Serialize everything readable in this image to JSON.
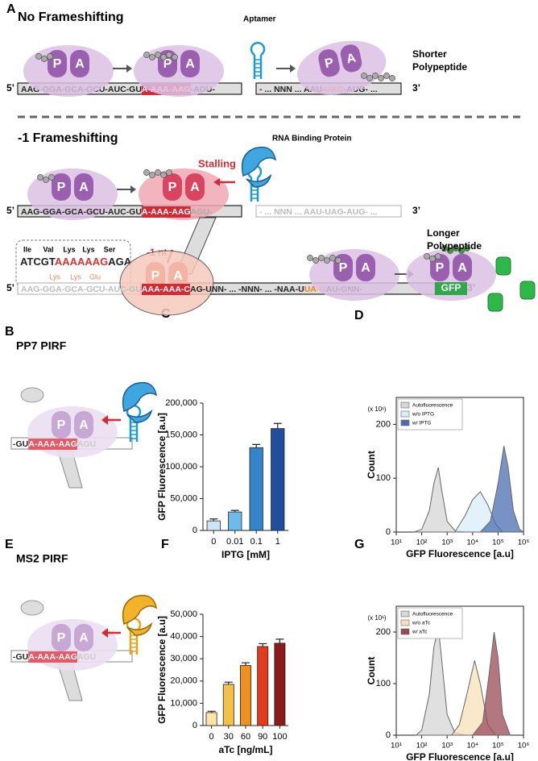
{
  "panel_labels": [
    "A",
    "B",
    "C",
    "D",
    "E",
    "F",
    "G"
  ],
  "diagram": {
    "no_frameshifting": "No Frameshifting",
    "aptamer": "Aptamer",
    "shorter": [
      "Shorter",
      "Polypeptide"
    ],
    "five_prime": "5’",
    "three_prime": "3’",
    "p": "P",
    "a": "A",
    "seq1": [
      "AAG-GGA-GCA-GCU-AUC-GU",
      "A-AAA-AAG",
      "-AGU-"
    ],
    "seq1b": [
      "- ... NNN ... AAU-",
      "UAG",
      "-AUG- ..."
    ],
    "minus1": "-1 Frameshifting",
    "rbp": "RNA Binding Protein",
    "stalling": "Stalling",
    "seq2": [
      "AAG-GGA-GCA-GCU-AUC-GU",
      "A-AAA-AAG",
      "AGU-"
    ],
    "seq2b": "- ... NNN ... AAU-UAG-AUG- ...",
    "minus1nt": "-1 nt",
    "codons_top": [
      "Ile",
      "Val",
      "Lys",
      "Lys",
      "Ser"
    ],
    "codon_seq": [
      "ATCGT",
      "AAAAAAG",
      "AGA"
    ],
    "codons_bottom": [
      "Lys",
      "Lys",
      "Glu"
    ],
    "longer": [
      "Longer",
      "Polypeptide"
    ],
    "seq3": [
      "AAG-GGA-GCA-GCU-AUC-GU",
      "AAA-AAA-C",
      "AG-UNN- ... -NNN- ... -NAA-U",
      "UA-G",
      "AU-GNN-"
    ],
    "gfp": "GFP",
    "pp7": "PP7 PIRF",
    "ms2": "MS2 PIRF",
    "pirf_seq": [
      "-GU",
      "A-AAA-AAG",
      "AGU"
    ]
  },
  "chart_data": [
    {
      "type": "bar",
      "ylabel": "GFP Fluorescence [a.u]",
      "xlabel": "IPTG [mM]",
      "categories": [
        "0",
        "0.01",
        "0.1",
        "1"
      ],
      "values": [
        15000,
        29000,
        130000,
        160000
      ],
      "errors": [
        3000,
        2500,
        5000,
        8000
      ],
      "colors": [
        "#cde6f7",
        "#6cbbea",
        "#3484cc",
        "#1f4e9c"
      ],
      "ylim": [
        0,
        200000
      ],
      "yticks": [
        0,
        {
          "value": 50000,
          "label": "50,000"
        },
        {
          "value": 100000,
          "label": "100,000"
        },
        {
          "value": 150000,
          "label": "150,000"
        },
        {
          "value": 200000,
          "label": "200,000"
        }
      ]
    },
    {
      "type": "area",
      "ylabel": "Count",
      "xlabel": "GFP Fluorescence [a.u]",
      "annotation": "(x 10¹)",
      "xscale": "log",
      "xlim": [
        10,
        1000000
      ],
      "ylim": [
        0,
        250
      ],
      "xticks": [
        {
          "value": 10,
          "label": "10¹"
        },
        {
          "value": 100,
          "label": "10²"
        },
        {
          "value": 1000,
          "label": "10³"
        },
        {
          "value": 10000,
          "label": "10⁴"
        },
        {
          "value": 100000,
          "label": "10⁵"
        },
        {
          "value": 1000000,
          "label": "10⁶"
        }
      ],
      "yticks": [
        0,
        100,
        200
      ],
      "legend": "top-left",
      "series": [
        {
          "name": "Autofluorescence",
          "color": "#d6d6d6",
          "x": [
            50,
            100,
            200,
            300,
            450,
            600,
            1000,
            2000,
            5000
          ],
          "values": [
            0,
            5,
            40,
            90,
            120,
            80,
            20,
            3,
            0
          ]
        },
        {
          "name": "w/o IPTG",
          "color": "#d9edf8",
          "x": [
            2000,
            5000,
            10000,
            20000,
            40000,
            80000,
            150000
          ],
          "values": [
            0,
            30,
            60,
            75,
            50,
            15,
            0
          ]
        },
        {
          "name": "w/ IPTG",
          "color": "#4a6db0",
          "x": [
            20000,
            50000,
            100000,
            170000,
            250000,
            400000,
            700000,
            1000000
          ],
          "values": [
            0,
            20,
            90,
            160,
            120,
            40,
            5,
            0
          ]
        }
      ]
    },
    {
      "type": "bar",
      "ylabel": "GFP Fluorescence [a.u]",
      "xlabel": "aTc [ng/mL]",
      "categories": [
        "0",
        "30",
        "60",
        "90",
        "100"
      ],
      "values": [
        5800,
        18500,
        27000,
        35500,
        37000
      ],
      "errors": [
        600,
        1000,
        1200,
        1300,
        1800
      ],
      "colors": [
        "#fde6a6",
        "#f5c04a",
        "#f0901e",
        "#e43a1e",
        "#8c1a1a"
      ],
      "ylim": [
        0,
        50000
      ],
      "yticks": [
        0,
        {
          "value": 10000,
          "label": "10,000"
        },
        {
          "value": 20000,
          "label": "20,000"
        },
        {
          "value": 30000,
          "label": "30,000"
        },
        {
          "value": 40000,
          "label": "40,000"
        },
        {
          "value": 50000,
          "label": "50,000"
        }
      ]
    },
    {
      "type": "area",
      "ylabel": "Count",
      "xlabel": "GFP Fluorescence [a.u]",
      "annotation": "(x 10¹)",
      "xscale": "log",
      "xlim": [
        10,
        1000000
      ],
      "ylim": [
        0,
        250
      ],
      "xticks": [
        {
          "value": 10,
          "label": "10¹"
        },
        {
          "value": 100,
          "label": "10²"
        },
        {
          "value": 1000,
          "label": "10³"
        },
        {
          "value": 10000,
          "label": "10⁴"
        },
        {
          "value": 100000,
          "label": "10⁵"
        },
        {
          "value": 1000000,
          "label": "10⁶"
        }
      ],
      "yticks": [
        0,
        100,
        200
      ],
      "legend": "top-left",
      "series": [
        {
          "name": "Autofluorescence",
          "color": "#d6d6d6",
          "x": [
            60,
            100,
            200,
            300,
            450,
            600,
            1000,
            2000,
            5000
          ],
          "values": [
            0,
            10,
            80,
            170,
            210,
            150,
            40,
            5,
            0
          ]
        },
        {
          "name": "w/o aTc",
          "color": "#f7e2b8",
          "x": [
            1500,
            3000,
            6000,
            12000,
            20000,
            40000,
            80000
          ],
          "values": [
            0,
            20,
            80,
            145,
            100,
            20,
            0
          ]
        },
        {
          "name": "w/ aTc",
          "color": "#9a4a55",
          "x": [
            10000,
            25000,
            45000,
            70000,
            100000,
            150000,
            300000
          ],
          "values": [
            0,
            25,
            120,
            200,
            150,
            40,
            0
          ]
        }
      ]
    }
  ]
}
